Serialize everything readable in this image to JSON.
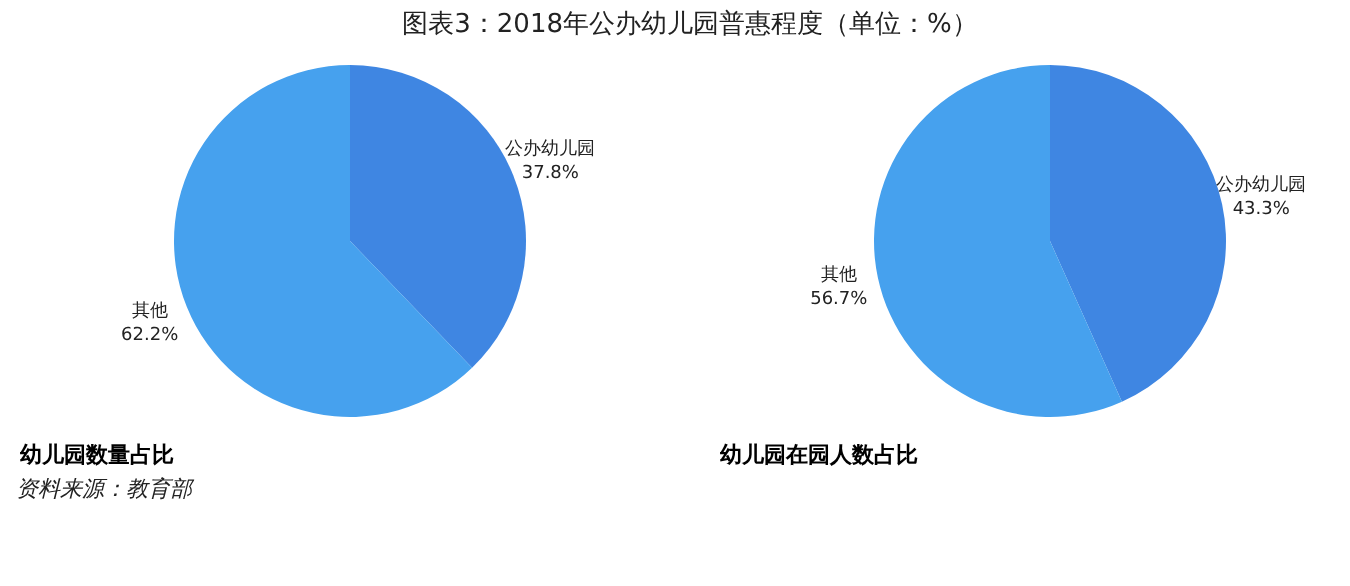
{
  "chart_data": [
    {
      "type": "pie",
      "title": "图表3：2018年公办幼儿园普惠程度（单位：%）",
      "subtitle": "幼儿园数量占比",
      "categories": [
        "公办幼儿园",
        "其他"
      ],
      "values": [
        37.8,
        62.2
      ],
      "value_labels": [
        "37.8%",
        "62.2%"
      ],
      "colors": [
        "#3f86e2",
        "#46a1ee"
      ]
    },
    {
      "type": "pie",
      "subtitle": "幼儿园在园人数占比",
      "categories": [
        "公办幼儿园",
        "其他"
      ],
      "values": [
        43.3,
        56.7
      ],
      "value_labels": [
        "43.3%",
        "56.7%"
      ],
      "colors": [
        "#3f86e2",
        "#46a1ee"
      ],
      "annotations": [
        "资料来源：教育部"
      ]
    }
  ]
}
